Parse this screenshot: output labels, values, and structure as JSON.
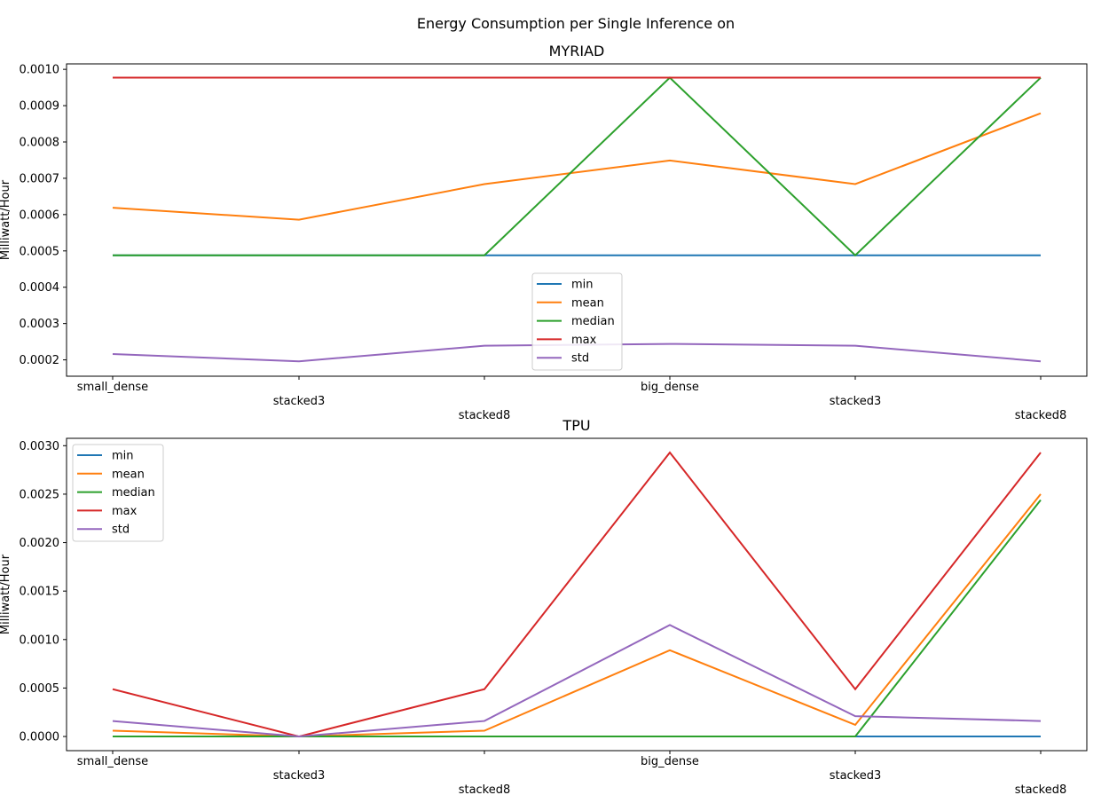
{
  "figure_title": "Energy Consumption per Single Inference on",
  "chart_data": [
    {
      "type": "line",
      "title": "MYRIAD",
      "xlabel": "",
      "ylabel": "Milliwatt/Hour",
      "categories": [
        "small_dense",
        "stacked3",
        "stacked8",
        "big_dense",
        "stacked3",
        "stacked8"
      ],
      "ylim": [
        0.000155,
        0.001015
      ],
      "yticks": [
        0.0002,
        0.0003,
        0.0004,
        0.0005,
        0.0006,
        0.0007,
        0.0008,
        0.0009,
        0.001
      ],
      "ytick_labels": [
        "0.0002",
        "0.0003",
        "0.0004",
        "0.0005",
        "0.0006",
        "0.0007",
        "0.0008",
        "0.0009",
        "0.0010"
      ],
      "grid": false,
      "legend_position": "bottom-center",
      "series": [
        {
          "name": "min",
          "color": "#1f77b4",
          "values": [
            0.000488,
            0.000488,
            0.000488,
            0.000488,
            0.000488,
            0.000488
          ]
        },
        {
          "name": "mean",
          "color": "#ff7f0e",
          "values": [
            0.000619,
            0.000586,
            0.000684,
            0.000749,
            0.000684,
            0.000879
          ]
        },
        {
          "name": "median",
          "color": "#2ca02c",
          "values": [
            0.000488,
            0.000488,
            0.000488,
            0.000977,
            0.000488,
            0.000977
          ]
        },
        {
          "name": "max",
          "color": "#d62728",
          "values": [
            0.000977,
            0.000977,
            0.000977,
            0.000977,
            0.000977,
            0.000977
          ]
        },
        {
          "name": "std",
          "color": "#9467bd",
          "values": [
            0.000216,
            0.000196,
            0.000239,
            0.000244,
            0.000239,
            0.000196
          ]
        }
      ]
    },
    {
      "type": "line",
      "title": "TPU",
      "xlabel": "",
      "ylabel": "Milliwatt/Hour",
      "categories": [
        "small_dense",
        "stacked3",
        "stacked8",
        "big_dense",
        "stacked3",
        "stacked8"
      ],
      "ylim": [
        -0.000146,
        0.003076
      ],
      "yticks": [
        0.0,
        0.0005,
        0.001,
        0.0015,
        0.002,
        0.0025,
        0.003
      ],
      "ytick_labels": [
        "0.0000",
        "0.0005",
        "0.0010",
        "0.0015",
        "0.0020",
        "0.0025",
        "0.0030"
      ],
      "grid": false,
      "legend_position": "top-left",
      "series": [
        {
          "name": "min",
          "color": "#1f77b4",
          "values": [
            0.0,
            0.0,
            0.0,
            0.0,
            0.0,
            0.0
          ]
        },
        {
          "name": "mean",
          "color": "#ff7f0e",
          "values": [
            6e-05,
            0.0,
            6e-05,
            0.00089,
            0.00012,
            0.0025
          ]
        },
        {
          "name": "median",
          "color": "#2ca02c",
          "values": [
            0.0,
            0.0,
            0.0,
            0.0,
            0.0,
            0.00244
          ]
        },
        {
          "name": "max",
          "color": "#d62728",
          "values": [
            0.000488,
            0.0,
            0.000488,
            0.00293,
            0.000488,
            0.00293
          ]
        },
        {
          "name": "std",
          "color": "#9467bd",
          "values": [
            0.00016,
            0.0,
            0.00016,
            0.00115,
            0.00021,
            0.00016
          ]
        }
      ]
    }
  ]
}
